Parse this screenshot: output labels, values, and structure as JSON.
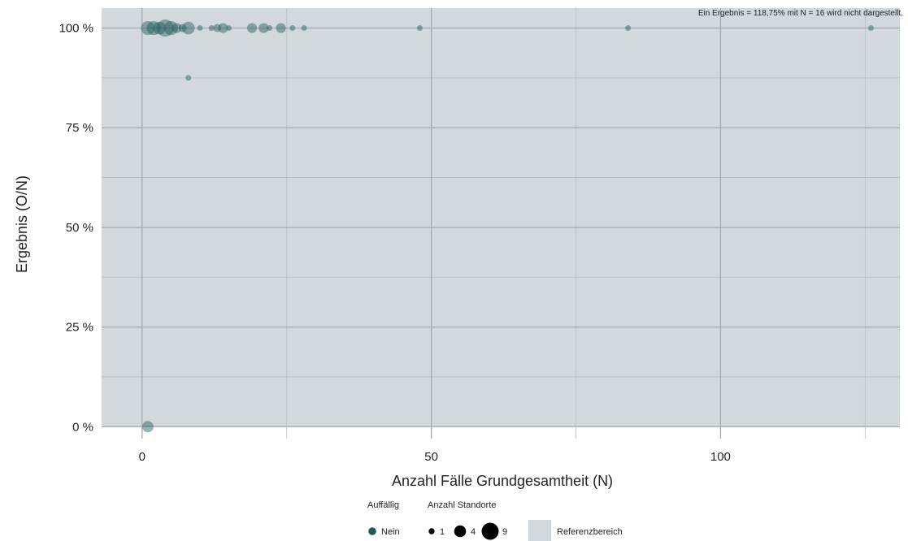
{
  "chart_data": {
    "type": "scatter",
    "xlabel": "Anzahl Fälle Grundgesamtheit (N)",
    "ylabel": "Ergebnis (O/N)",
    "xlim": [
      -7,
      131
    ],
    "ylim": [
      -3,
      105
    ],
    "x_ticks": [
      {
        "value": 0,
        "label": "0"
      },
      {
        "value": 50,
        "label": "50"
      },
      {
        "value": 100,
        "label": "100"
      }
    ],
    "x_minor_ticks": [
      25,
      75,
      125
    ],
    "y_ticks": [
      {
        "value": 0,
        "label": "0 %"
      },
      {
        "value": 25,
        "label": "25 %"
      },
      {
        "value": 50,
        "label": "50 %"
      },
      {
        "value": 75,
        "label": "75 %"
      },
      {
        "value": 100,
        "label": "100 %"
      }
    ],
    "y_minor_ticks": [
      12.5,
      37.5,
      62.5,
      87.5
    ],
    "grid": true,
    "reference_range": {
      "y_from": 0,
      "y_to": 105,
      "label": "Referenzbereich",
      "color": "#d3d8dd"
    },
    "point_color": "#1d5b59",
    "point_opacity": 0.45,
    "annotation": "Ein Ergebnis = 118,75% mit N = 16 wird nicht dargestellt.",
    "points": [
      {
        "x": 1,
        "y": 0,
        "sites": 4
      },
      {
        "x": 1,
        "y": 100,
        "sites": 6
      },
      {
        "x": 2,
        "y": 100,
        "sites": 6
      },
      {
        "x": 3,
        "y": 100,
        "sites": 5
      },
      {
        "x": 4,
        "y": 100,
        "sites": 9
      },
      {
        "x": 5,
        "y": 100,
        "sites": 6
      },
      {
        "x": 6,
        "y": 100,
        "sites": 3
      },
      {
        "x": 7,
        "y": 100,
        "sites": 2
      },
      {
        "x": 8,
        "y": 100,
        "sites": 5
      },
      {
        "x": 8,
        "y": 87.5,
        "sites": 1
      },
      {
        "x": 10,
        "y": 100,
        "sites": 1
      },
      {
        "x": 12,
        "y": 100,
        "sites": 1
      },
      {
        "x": 13,
        "y": 100,
        "sites": 2
      },
      {
        "x": 14,
        "y": 100,
        "sites": 3
      },
      {
        "x": 15,
        "y": 100,
        "sites": 1
      },
      {
        "x": 19,
        "y": 100,
        "sites": 3
      },
      {
        "x": 21,
        "y": 100,
        "sites": 3
      },
      {
        "x": 22,
        "y": 100,
        "sites": 1
      },
      {
        "x": 24,
        "y": 100,
        "sites": 3
      },
      {
        "x": 26,
        "y": 100,
        "sites": 1
      },
      {
        "x": 28,
        "y": 100,
        "sites": 1
      },
      {
        "x": 48,
        "y": 100,
        "sites": 1
      },
      {
        "x": 84,
        "y": 100,
        "sites": 1
      },
      {
        "x": 126,
        "y": 100,
        "sites": 1
      }
    ],
    "legend": {
      "position": "bottom",
      "color_title": "Auffällig",
      "color_items": [
        {
          "label": "Nein",
          "color": "#1d5b59"
        }
      ],
      "size_title": "Anzahl Standorte",
      "size_items": [
        {
          "label": "1",
          "sites": 1
        },
        {
          "label": "4",
          "sites": 4
        },
        {
          "label": "9",
          "sites": 9
        }
      ],
      "fill_label": "Referenzbereich"
    }
  }
}
